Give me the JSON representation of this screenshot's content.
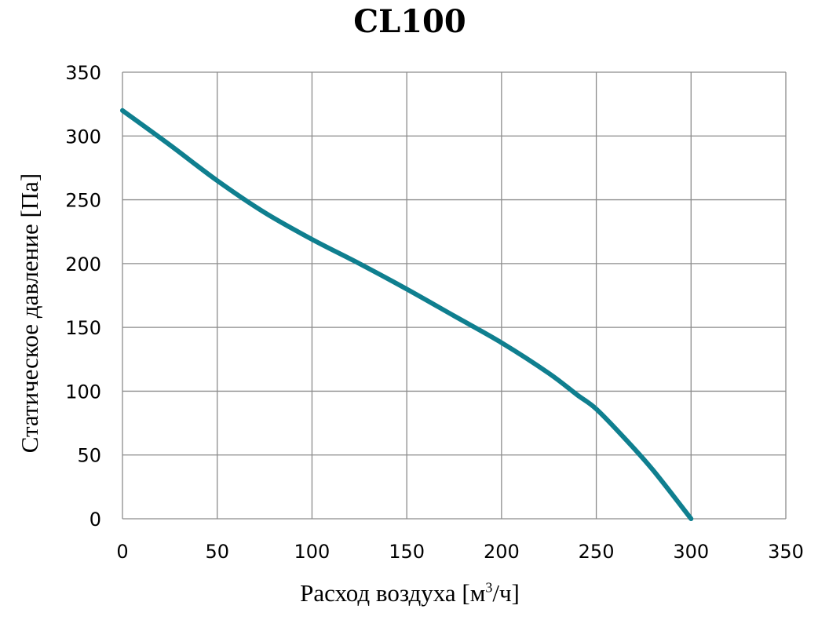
{
  "chart_data": {
    "type": "line",
    "title": "CL100",
    "xlabel_prefix": "Расход воздуха [м",
    "xlabel_sup": "3",
    "xlabel_suffix": "/ч]",
    "ylabel": "Статическое давление [Па]",
    "xlim": [
      0,
      350
    ],
    "ylim": [
      0,
      350
    ],
    "x_ticks": [
      0,
      50,
      100,
      150,
      200,
      250,
      300,
      350
    ],
    "y_ticks": [
      0,
      50,
      100,
      150,
      200,
      250,
      300,
      350
    ],
    "grid": true,
    "series": [
      {
        "color": "#0f7f8f",
        "x": [
          0,
          25,
          50,
          75,
          100,
          125,
          150,
          175,
          200,
          225,
          240,
          250,
          265,
          280,
          300
        ],
        "y": [
          320,
          293,
          265,
          240,
          219,
          200,
          180,
          159,
          138,
          114,
          97,
          86,
          63,
          38,
          0
        ]
      }
    ]
  }
}
